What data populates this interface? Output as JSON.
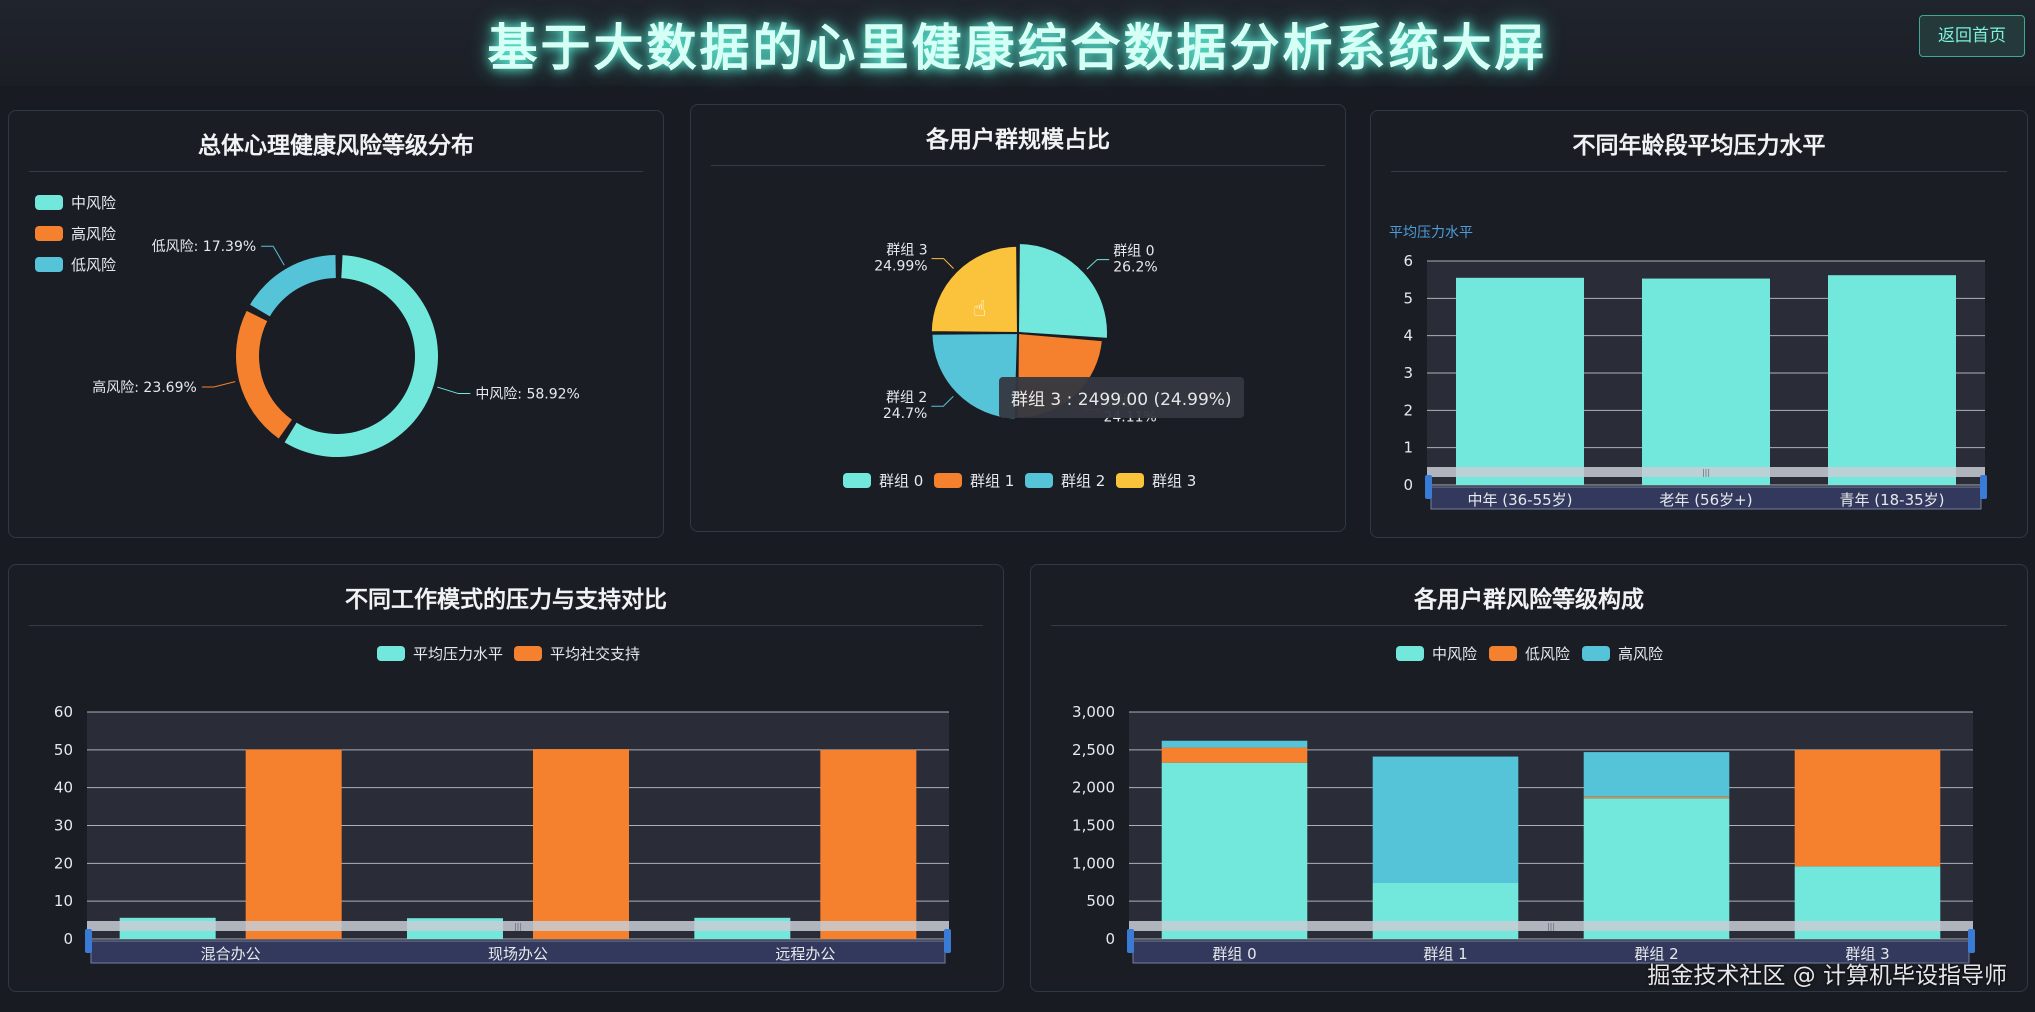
{
  "header": {
    "title": "基于大数据的心里健康综合数据分析系统大屏",
    "back_label": "返回首页"
  },
  "panels": {
    "risk": {
      "title": "总体心理健康风险等级分布"
    },
    "groups": {
      "title": "各用户群规模占比"
    },
    "age": {
      "title": "不同年龄段平均压力水平"
    },
    "work": {
      "title": "不同工作模式的压力与支持对比"
    },
    "grouprisk": {
      "title": "各用户群风险等级构成"
    }
  },
  "tooltip": {
    "text": "群组 3 : 2499.00 (24.99%)"
  },
  "watermark": "掘金技术社区 @ 计算机毕设指导师",
  "colors": {
    "teal": "#72e8dc",
    "orange": "#f5812f",
    "blue": "#56c4d8",
    "yellow": "#fbc23c"
  },
  "chart_data": [
    {
      "id": "risk",
      "type": "pie",
      "donut": true,
      "legend": [
        "中风险",
        "高风险",
        "低风险"
      ],
      "slices": [
        {
          "name": "中风险",
          "value": 58.92,
          "label": "中风险: 58.92%"
        },
        {
          "name": "高风险",
          "value": 23.69,
          "label": "高风险: 23.69%"
        },
        {
          "name": "低风险",
          "value": 17.39,
          "label": "低风险: 17.39%"
        }
      ]
    },
    {
      "id": "groups",
      "type": "pie",
      "rose": true,
      "legend": [
        "群组 0",
        "群组 1",
        "群组 2",
        "群组 3"
      ],
      "slices": [
        {
          "name": "群组 0",
          "value": 2620,
          "pct": "26.2%"
        },
        {
          "name": "群组 1",
          "value": 2411,
          "pct": "24.11%"
        },
        {
          "name": "群组 2",
          "value": 2470,
          "pct": "24.7%"
        },
        {
          "name": "群组 3",
          "value": 2499,
          "pct": "24.99%"
        }
      ]
    },
    {
      "id": "age",
      "type": "bar",
      "ylabel": "平均压力水平",
      "categories": [
        "中年 (36-55岁)",
        "老年 (56岁+)",
        "青年 (18-35岁)"
      ],
      "values": [
        5.55,
        5.53,
        5.62
      ],
      "ylim": [
        0,
        6
      ],
      "yticks": [
        "0",
        "1",
        "2",
        "3",
        "4",
        "5",
        "6"
      ],
      "grid": true
    },
    {
      "id": "work",
      "type": "bar",
      "categories": [
        "混合办公",
        "现场办公",
        "远程办公"
      ],
      "series": [
        {
          "name": "平均压力水平",
          "values": [
            5.6,
            5.5,
            5.6
          ]
        },
        {
          "name": "平均社交支持",
          "values": [
            50.1,
            50.2,
            50.0
          ]
        }
      ],
      "ylim": [
        0,
        60
      ],
      "yticks": [
        "0",
        "10",
        "20",
        "30",
        "40",
        "50",
        "60"
      ],
      "legend": "top-center",
      "grid": true
    },
    {
      "id": "grouprisk",
      "type": "bar",
      "stacked": true,
      "categories": [
        "群组 0",
        "群组 1",
        "群组 2",
        "群组 3"
      ],
      "series": [
        {
          "name": "中风险",
          "values": [
            2330,
            740,
            1860,
            960
          ]
        },
        {
          "name": "低风险",
          "values": [
            200,
            0,
            20,
            1539
          ]
        },
        {
          "name": "高风险",
          "values": [
            90,
            1671,
            590,
            0
          ]
        }
      ],
      "ylim": [
        0,
        3000
      ],
      "yticks": [
        "0",
        "500",
        "1,000",
        "1,500",
        "2,000",
        "2,500",
        "3,000"
      ],
      "legend": "top-center",
      "grid": true
    }
  ]
}
